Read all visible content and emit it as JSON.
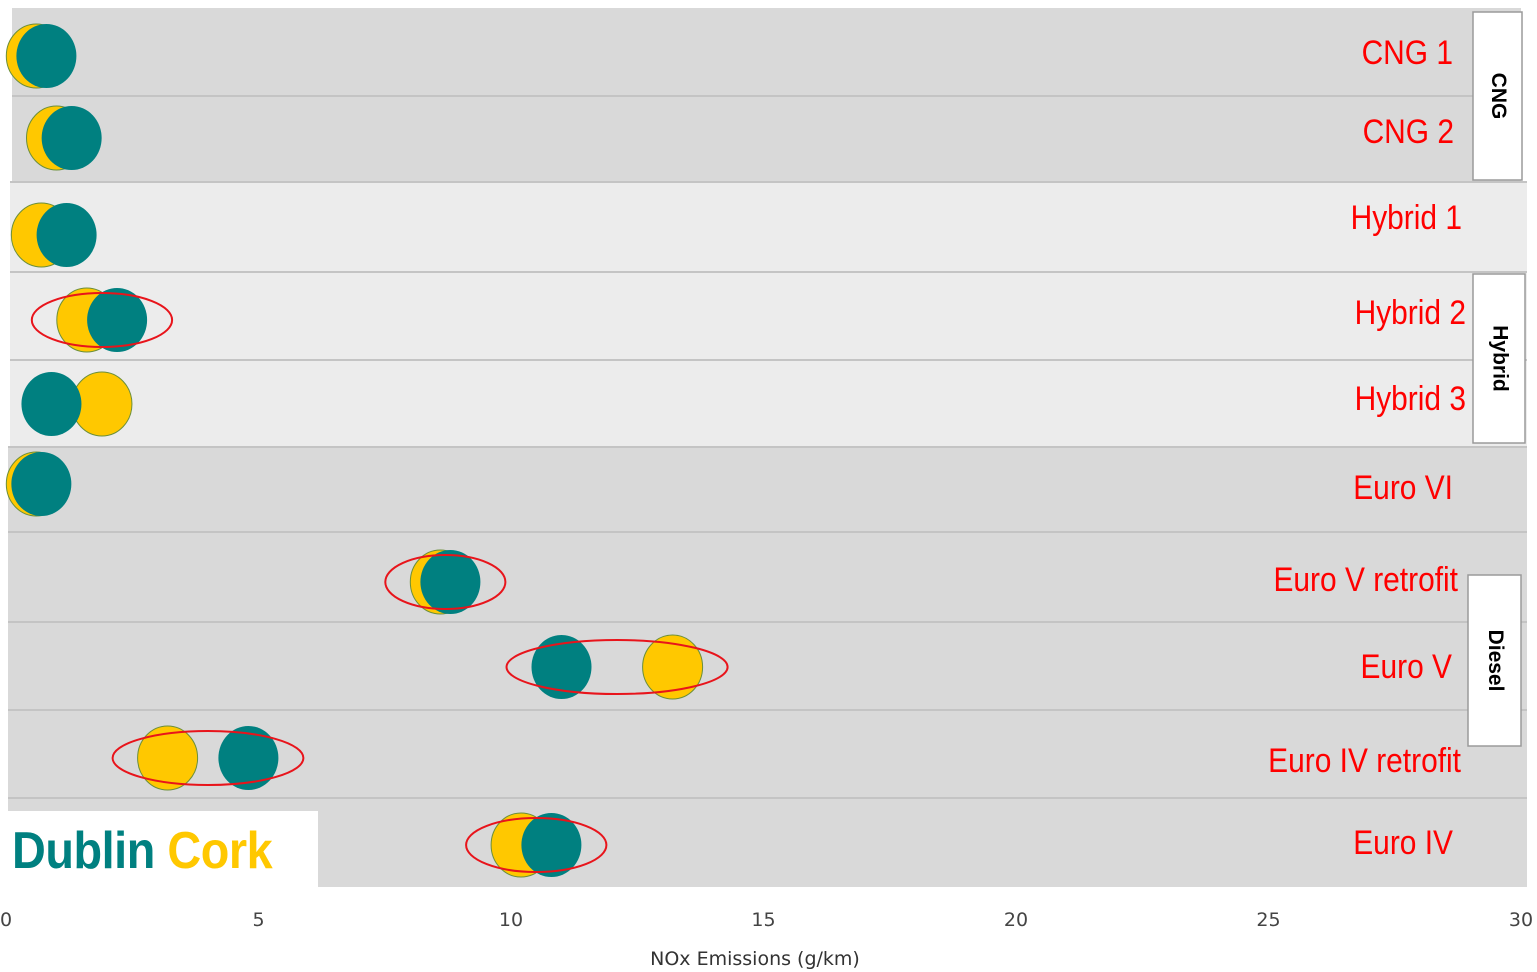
{
  "chart_data": {
    "type": "scatter",
    "xlabel": "NOx Emissions (g/km)",
    "xlim": [
      0,
      30
    ],
    "x_ticks": [
      "0",
      "5",
      "10",
      "15",
      "20",
      "25",
      "30"
    ],
    "categories": [
      "CNG 1",
      "CNG 2",
      "Hybrid 1",
      "Hybrid 2",
      "Hybrid 3",
      "Euro VI",
      "Euro V retrofit",
      "Euro V",
      "Euro IV retrofit",
      "Euro IV"
    ],
    "groups": [
      {
        "name": "CNG",
        "categories": [
          "CNG 1",
          "CNG 2"
        ]
      },
      {
        "name": "Hybrid",
        "categories": [
          "Hybrid 1",
          "Hybrid 2",
          "Hybrid 3"
        ]
      },
      {
        "name": "Diesel",
        "categories": [
          "Euro VI",
          "Euro V retrofit",
          "Euro V",
          "Euro IV retrofit",
          "Euro IV"
        ]
      }
    ],
    "series": [
      {
        "name": "Cork",
        "color": "#FFC800",
        "values": [
          0.6,
          1.0,
          0.7,
          1.6,
          1.9,
          0.6,
          8.6,
          13.2,
          3.2,
          10.2
        ]
      },
      {
        "name": "Dublin",
        "color": "#008080",
        "values": [
          0.8,
          1.3,
          1.2,
          2.2,
          0.9,
          0.7,
          8.8,
          11.0,
          4.8,
          10.8
        ]
      }
    ],
    "highlighted": [
      "Hybrid 2",
      "Euro V retrofit",
      "Euro V",
      "Euro IV retrofit",
      "Euro IV"
    ],
    "highlight_color": "#E8141B",
    "label_color": "#FF0000"
  },
  "legend": {
    "dublin": "Dublin",
    "cork": "Cork",
    "dublin_color": "#008080",
    "cork_color": "#FFC800"
  }
}
